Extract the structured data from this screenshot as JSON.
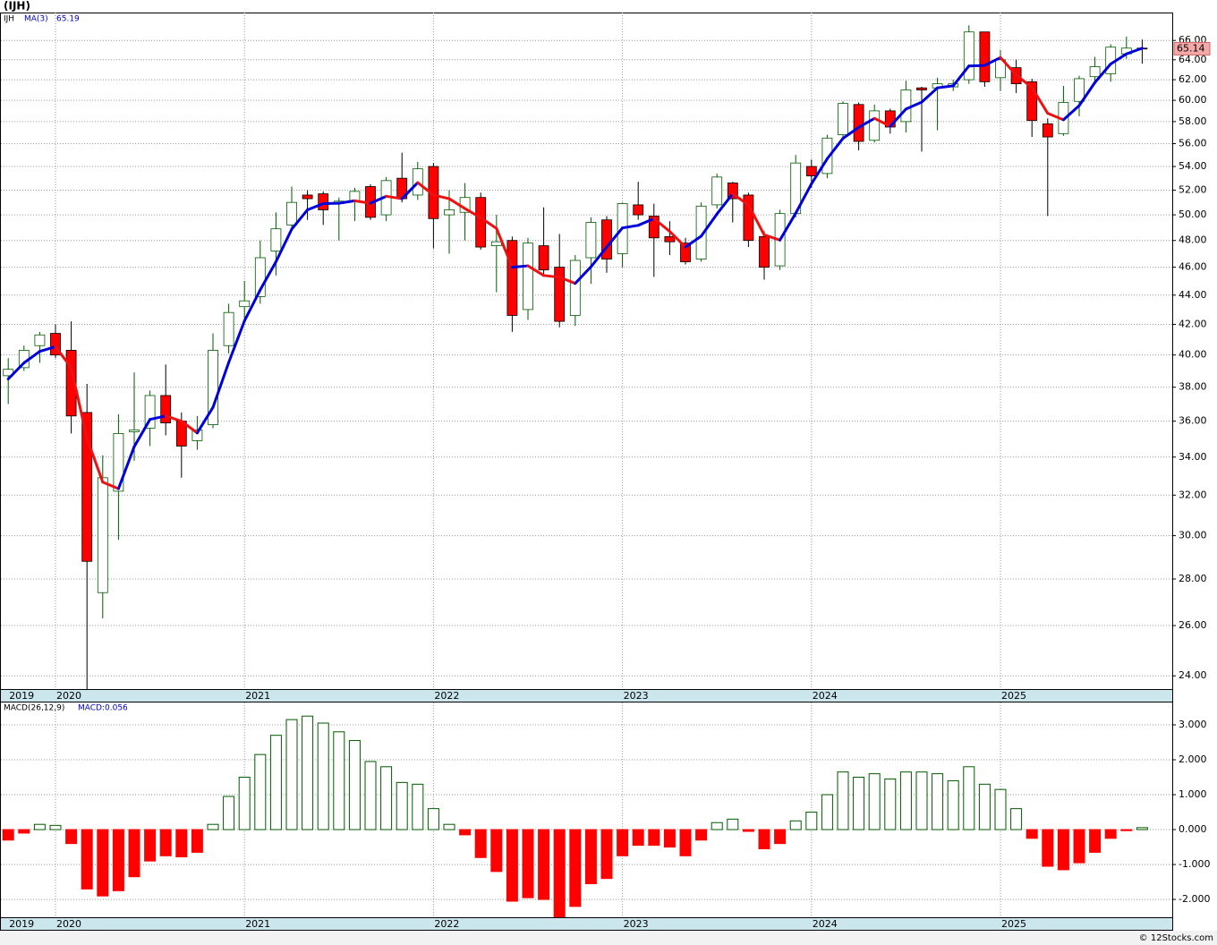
{
  "chart_data": [
    {
      "type": "candlestick",
      "title": "(IJH)",
      "ticker": "IJH",
      "categories": [
        "2019",
        null,
        null,
        "2020",
        null,
        null,
        null,
        null,
        null,
        null,
        null,
        null,
        null,
        null,
        null,
        "2021",
        null,
        null,
        null,
        null,
        null,
        null,
        null,
        null,
        null,
        null,
        null,
        "2022",
        null,
        null,
        null,
        null,
        null,
        null,
        null,
        null,
        null,
        null,
        null,
        "2023",
        null,
        null,
        null,
        null,
        null,
        null,
        null,
        null,
        null,
        null,
        null,
        "2024",
        null,
        null,
        null,
        null,
        null,
        null,
        null,
        null,
        null,
        null,
        null,
        "2025",
        null,
        null,
        null,
        null,
        null,
        null,
        null,
        null,
        null
      ],
      "open": [
        38.7,
        39.2,
        40.6,
        41.4,
        40.3,
        36.5,
        27.4,
        32.2,
        35.4,
        35.6,
        37.5,
        36.0,
        34.9,
        35.8,
        40.6,
        43.2,
        43.9,
        47.2,
        49.2,
        51.6,
        51.7,
        50.9,
        51.1,
        52.3,
        50.0,
        53.0,
        51.6,
        54.0,
        50.0,
        50.2,
        51.4,
        47.6,
        48.0,
        43.0,
        47.6,
        46.0,
        42.6,
        46.7,
        49.6,
        47.0,
        50.8,
        49.9,
        48.3,
        47.8,
        46.6,
        50.8,
        52.6,
        51.6,
        48.3,
        46.1,
        50.1,
        54.0,
        53.4,
        56.8,
        59.6,
        56.3,
        59.0,
        58.0,
        61.2,
        61.2,
        61.3,
        62.0,
        66.9,
        62.2,
        63.2,
        61.8,
        57.8,
        56.9,
        59.9,
        62.3,
        62.6,
        64.6,
        65.2
      ],
      "high": [
        39.8,
        40.6,
        41.5,
        42.0,
        42.2,
        38.2,
        34.1,
        36.4,
        38.9,
        37.8,
        39.4,
        36.5,
        36.3,
        41.4,
        43.4,
        45.0,
        48.0,
        50.2,
        52.3,
        52.0,
        51.9,
        51.4,
        52.2,
        52.5,
        53.1,
        55.2,
        54.4,
        54.3,
        52.0,
        52.6,
        51.8,
        50.0,
        48.3,
        48.2,
        50.6,
        48.5,
        46.9,
        49.8,
        49.9,
        51.0,
        52.7,
        50.9,
        49.5,
        48.2,
        51.0,
        53.4,
        52.7,
        51.8,
        48.7,
        50.4,
        55.0,
        54.6,
        56.8,
        59.9,
        59.8,
        59.6,
        59.2,
        61.9,
        61.3,
        62.2,
        62.0,
        67.6,
        66.9,
        65.0,
        64.0,
        62.1,
        58.3,
        61.4,
        62.4,
        64.3,
        65.6,
        66.4,
        66.1
      ],
      "low": [
        37.0,
        39.0,
        39.5,
        39.8,
        35.3,
        23.5,
        26.3,
        29.8,
        33.8,
        34.6,
        35.2,
        32.9,
        34.4,
        35.6,
        40.1,
        42.3,
        43.4,
        45.4,
        48.9,
        49.6,
        49.2,
        48.0,
        49.5,
        49.6,
        49.5,
        51.0,
        51.2,
        47.4,
        47.0,
        48.0,
        47.3,
        44.2,
        41.5,
        42.3,
        45.5,
        41.8,
        41.9,
        44.8,
        45.6,
        46.0,
        49.6,
        45.3,
        46.9,
        46.2,
        46.4,
        50.5,
        49.4,
        47.5,
        45.1,
        45.8,
        49.8,
        52.2,
        53.0,
        56.3,
        55.4,
        56.1,
        56.9,
        57.0,
        55.3,
        57.2,
        60.9,
        61.6,
        61.3,
        60.9,
        60.7,
        56.6,
        49.9,
        56.7,
        58.5,
        61.9,
        61.8,
        64.1,
        63.6
      ],
      "close": [
        39.1,
        40.3,
        41.3,
        40.0,
        36.3,
        28.8,
        32.9,
        35.3,
        35.5,
        37.5,
        35.9,
        34.6,
        35.5,
        40.3,
        42.8,
        43.6,
        46.7,
        48.9,
        51.0,
        51.3,
        50.4,
        51.1,
        51.9,
        49.8,
        52.8,
        51.3,
        53.8,
        49.7,
        50.4,
        51.4,
        47.5,
        47.9,
        42.6,
        47.8,
        45.8,
        42.2,
        46.5,
        49.4,
        46.6,
        50.9,
        50.0,
        48.2,
        47.9,
        46.4,
        50.7,
        53.1,
        51.3,
        48.0,
        46.0,
        50.1,
        54.3,
        53.2,
        56.5,
        59.7,
        56.2,
        59.0,
        57.5,
        61.0,
        61.0,
        61.6,
        61.6,
        66.9,
        61.8,
        64.0,
        61.6,
        58.1,
        56.6,
        59.8,
        62.1,
        63.3,
        65.3,
        65.2,
        65.14
      ],
      "up_color": "#005a00",
      "down_color": "#ff0000",
      "series": [
        {
          "name": "MA(3)",
          "color": "#0000dd",
          "down_color": "#ee1111",
          "values": [
            38.5,
            39.5,
            40.23,
            40.53,
            39.2,
            35.03,
            32.67,
            32.33,
            34.57,
            36.1,
            36.3,
            36.0,
            35.33,
            36.8,
            39.53,
            42.23,
            44.37,
            46.4,
            48.87,
            50.4,
            50.9,
            50.93,
            51.13,
            50.93,
            51.5,
            51.3,
            52.63,
            51.6,
            51.3,
            50.5,
            49.77,
            48.93,
            46.0,
            46.1,
            45.4,
            45.27,
            44.83,
            46.03,
            47.5,
            48.97,
            49.17,
            49.7,
            48.7,
            47.5,
            48.33,
            50.07,
            51.7,
            50.8,
            48.43,
            48.03,
            50.13,
            52.53,
            54.67,
            56.47,
            57.47,
            58.3,
            57.57,
            59.17,
            59.83,
            61.2,
            61.4,
            63.37,
            63.43,
            64.23,
            62.47,
            61.23,
            58.77,
            58.17,
            59.5,
            61.73,
            63.57,
            64.6,
            65.19
          ]
        }
      ],
      "log_scale": true,
      "grid": true,
      "ylim": [
        23.5,
        69.0
      ],
      "yticks": [
        {
          "value": 24,
          "label": "24.00"
        },
        {
          "value": 26,
          "label": "26.00"
        },
        {
          "value": 28,
          "label": "28.00"
        },
        {
          "value": 30,
          "label": "30.00"
        },
        {
          "value": 32,
          "label": "32.00"
        },
        {
          "value": 34,
          "label": "34.00"
        },
        {
          "value": 36,
          "label": "36.00"
        },
        {
          "value": 38,
          "label": "38.00"
        },
        {
          "value": 40,
          "label": "40.00"
        },
        {
          "value": 42,
          "label": "42.00"
        },
        {
          "value": 44,
          "label": "44.00"
        },
        {
          "value": 46,
          "label": "46.00"
        },
        {
          "value": 48,
          "label": "48.00"
        },
        {
          "value": 50,
          "label": "50.00"
        },
        {
          "value": 52,
          "label": "52.00"
        },
        {
          "value": 54,
          "label": "54.00"
        },
        {
          "value": 56,
          "label": "56.00"
        },
        {
          "value": 58,
          "label": "58.00"
        },
        {
          "value": 60,
          "label": "60.00"
        },
        {
          "value": 62,
          "label": "62.00"
        },
        {
          "value": 64,
          "label": "64.00"
        },
        {
          "value": 66,
          "label": "66.00"
        }
      ],
      "footer": "© 12Stocks.com"
    },
    {
      "type": "histogram_bars",
      "title": "MACD(26,12,9)",
      "legend": "MACD:0.056",
      "categories": [
        "2019",
        null,
        null,
        "2020",
        null,
        null,
        null,
        null,
        null,
        null,
        null,
        null,
        null,
        null,
        null,
        "2021",
        null,
        null,
        null,
        null,
        null,
        null,
        null,
        null,
        null,
        null,
        null,
        "2022",
        null,
        null,
        null,
        null,
        null,
        null,
        null,
        null,
        null,
        null,
        null,
        "2023",
        null,
        null,
        null,
        null,
        null,
        null,
        null,
        null,
        null,
        null,
        null,
        "2024",
        null,
        null,
        null,
        null,
        null,
        null,
        null,
        null,
        null,
        null,
        null,
        "2025",
        null,
        null,
        null,
        null,
        null,
        null,
        null,
        null,
        null
      ],
      "values": [
        -0.3,
        -0.1,
        0.15,
        0.12,
        -0.4,
        -1.7,
        -1.9,
        -1.75,
        -1.35,
        -0.9,
        -0.75,
        -0.78,
        -0.65,
        0.15,
        0.95,
        1.5,
        2.15,
        2.7,
        3.15,
        3.25,
        3.05,
        2.8,
        2.55,
        1.95,
        1.8,
        1.35,
        1.3,
        0.6,
        0.15,
        -0.15,
        -0.8,
        -1.2,
        -2.05,
        -1.95,
        -2.0,
        -2.5,
        -2.2,
        -1.55,
        -1.4,
        -0.75,
        -0.45,
        -0.45,
        -0.5,
        -0.75,
        -0.3,
        0.2,
        0.3,
        -0.05,
        -0.55,
        -0.4,
        0.25,
        0.5,
        1.0,
        1.65,
        1.5,
        1.6,
        1.45,
        1.65,
        1.65,
        1.6,
        1.4,
        1.8,
        1.3,
        1.15,
        0.6,
        -0.25,
        -1.05,
        -1.15,
        -0.95,
        -0.65,
        -0.25,
        -0.03,
        0.056
      ],
      "up_color": "#005a00",
      "down_color": "#ff0000",
      "grid": true,
      "ylim": [
        -2.51,
        3.64
      ],
      "yticks": [
        {
          "value": 3,
          "label": "3.000"
        },
        {
          "value": 2,
          "label": "2.000"
        },
        {
          "value": 1,
          "label": "1.000"
        },
        {
          "value": 0,
          "label": "0.000"
        },
        {
          "value": -1,
          "label": "-1.000"
        },
        {
          "value": -2,
          "label": "-2.000"
        }
      ]
    }
  ]
}
